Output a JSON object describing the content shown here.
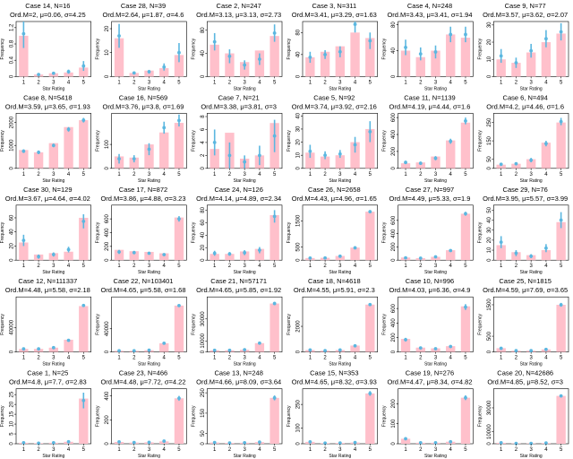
{
  "chart_data": {
    "type": "bar",
    "xlabel": "Star Rating",
    "ylabel": "Frequency",
    "categories": [
      "1",
      "2",
      "3",
      "4",
      "5"
    ],
    "colors": {
      "bar": "#ffc0cb",
      "point": "#5bb7e0",
      "axis": "#000000"
    },
    "panels": [
      {
        "title": "Case 14, N=16",
        "stats": "Ord.M=2, μ=0.06, σ=4.25",
        "values": [
          1.0,
          0.05,
          0.08,
          0.1,
          0.22
        ],
        "points": [
          1.05,
          0.05,
          0.08,
          0.12,
          0.26
        ],
        "err": [
          0.35,
          0.02,
          0.03,
          0.05,
          0.12
        ],
        "yticks": [
          0,
          0.4,
          0.8,
          1.2
        ],
        "ylim": [
          0,
          1.35
        ]
      },
      {
        "title": "Case 28, N=39",
        "stats": "Ord.M=2.64, μ=1.87, σ=4.6",
        "values": [
          16,
          1.5,
          2.5,
          3.5,
          9
        ],
        "points": [
          17,
          1.5,
          2,
          4,
          10
        ],
        "err": [
          5,
          0.5,
          0.8,
          1.5,
          4
        ],
        "yticks": [
          0,
          10,
          20
        ],
        "ylim": [
          0,
          23
        ]
      },
      {
        "title": "Case 2, N=247",
        "stats": "Ord.M=3.13, μ=3.13, σ=2.73",
        "values": [
          55,
          40,
          25,
          45,
          70
        ],
        "points": [
          60,
          35,
          20,
          30,
          75
        ],
        "err": [
          15,
          12,
          8,
          10,
          15
        ],
        "yticks": [
          0,
          40,
          80
        ],
        "ylim": [
          0,
          95
        ]
      },
      {
        "title": "Case 3, N=311",
        "stats": "Ord.M=3.41, μ=3.29, σ=1.63",
        "values": [
          35,
          45,
          55,
          80,
          70
        ],
        "points": [
          35,
          40,
          45,
          95,
          65
        ],
        "err": [
          10,
          8,
          10,
          15,
          15
        ],
        "yticks": [
          0,
          40,
          80
        ],
        "ylim": [
          0,
          100
        ]
      },
      {
        "title": "Case 4, N=248",
        "stats": "Ord.M=3.43, μ=3.41, σ=1.94",
        "values": [
          40,
          30,
          40,
          65,
          60
        ],
        "points": [
          45,
          35,
          38,
          65,
          65
        ],
        "err": [
          12,
          10,
          10,
          12,
          12
        ],
        "yticks": [
          0,
          40,
          80
        ],
        "ylim": [
          0,
          85
        ]
      },
      {
        "title": "Case 9, N=77",
        "stats": "Ord.M=3.57, μ=3.62, σ=2.07",
        "values": [
          10,
          8,
          14,
          20,
          25
        ],
        "points": [
          12,
          8,
          15,
          22,
          26
        ],
        "err": [
          4,
          3,
          4,
          5,
          5
        ],
        "yticks": [
          0,
          10,
          20,
          30
        ],
        "ylim": [
          0,
          32
        ]
      },
      {
        "title": "Case 8, N=5418",
        "stats": "Ord.M=3.59, μ=3.65, σ=1.93",
        "values": [
          800,
          700,
          1100,
          1800,
          2100
        ],
        "points": [
          750,
          700,
          1000,
          1700,
          2100
        ],
        "err": [
          80,
          80,
          80,
          100,
          100
        ],
        "yticks": [
          0,
          1000,
          2000
        ],
        "ylim": [
          0,
          2400
        ]
      },
      {
        "title": "Case 16, N=569",
        "stats": "Ord.M=3.76, μ=3.8, σ=1.69",
        "values": [
          50,
          45,
          100,
          150,
          190
        ],
        "points": [
          40,
          40,
          80,
          170,
          200
        ],
        "err": [
          20,
          15,
          25,
          25,
          25
        ],
        "yticks": [
          0,
          100
        ],
        "ylim": [
          0,
          230
        ]
      },
      {
        "title": "Case 7, N=21",
        "stats": "Ord.M=3.38, μ=3.81, σ=3",
        "values": [
          3,
          5.5,
          1.5,
          2,
          7
        ],
        "points": [
          4,
          2,
          1,
          2,
          5
        ],
        "err": [
          2,
          2,
          1,
          1.5,
          2.5
        ],
        "yticks": [
          0,
          2,
          4,
          6,
          8
        ],
        "ylim": [
          0,
          8.5
        ]
      },
      {
        "title": "Case 5, N=92",
        "stats": "Ord.M=3.74, μ=3.92, σ=2.16",
        "values": [
          12,
          9,
          10,
          20,
          30
        ],
        "points": [
          13,
          10,
          11,
          18,
          28
        ],
        "err": [
          5,
          3,
          3,
          6,
          8
        ],
        "yticks": [
          0,
          10,
          20,
          30,
          40
        ],
        "ylim": [
          0,
          42
        ]
      },
      {
        "title": "Case 11, N=1139",
        "stats": "Ord.M=4.19, μ=4.44, σ=1.6",
        "values": [
          60,
          70,
          140,
          330,
          540
        ],
        "points": [
          70,
          60,
          120,
          320,
          560
        ],
        "err": [
          20,
          20,
          25,
          30,
          40
        ],
        "yticks": [
          0,
          200,
          400,
          600
        ],
        "ylim": [
          0,
          650
        ]
      },
      {
        "title": "Case 6, N=494",
        "stats": "Ord.M=4.2, μ=4.46, σ=1.6",
        "values": [
          20,
          25,
          50,
          140,
          250
        ],
        "points": [
          22,
          25,
          45,
          135,
          255
        ],
        "err": [
          8,
          8,
          12,
          15,
          20
        ],
        "yticks": [
          0,
          50,
          150,
          250
        ],
        "ylim": [
          0,
          300
        ]
      },
      {
        "title": "Case 30, N=129",
        "stats": "Ord.M=3.67, μ=4.64, σ=4.02",
        "values": [
          25,
          8,
          10,
          12,
          60
        ],
        "points": [
          28,
          5,
          8,
          15,
          55
        ],
        "err": [
          8,
          3,
          3,
          4,
          10
        ],
        "yticks": [
          0,
          20,
          40,
          60
        ],
        "ylim": [
          0,
          78
        ]
      },
      {
        "title": "Case 17, N=872",
        "stats": "Ord.M=3.86, μ=4.88, σ=3.23",
        "values": [
          150,
          130,
          120,
          100,
          620
        ],
        "points": [
          120,
          110,
          100,
          80,
          600
        ],
        "err": [
          30,
          25,
          20,
          20,
          40
        ],
        "yticks": [
          0,
          200,
          400,
          600
        ],
        "ylim": [
          0,
          800
        ]
      },
      {
        "title": "Case 24, N=126",
        "stats": "Ord.M=4.14, μ=4.89, σ=2.34",
        "values": [
          10,
          10,
          14,
          18,
          72
        ],
        "points": [
          11,
          10,
          12,
          16,
          70
        ],
        "err": [
          4,
          3,
          4,
          5,
          10
        ],
        "yticks": [
          0,
          20,
          40,
          60,
          80
        ],
        "ylim": [
          0,
          88
        ]
      },
      {
        "title": "Case 26, N=2658",
        "stats": "Ord.M=4.43, μ=4.96, σ=1.65",
        "values": [
          80,
          90,
          160,
          480,
          1850
        ],
        "points": [
          80,
          85,
          150,
          470,
          1850
        ],
        "err": [
          20,
          20,
          30,
          40,
          60
        ],
        "yticks": [
          0,
          500,
          1500
        ],
        "ylim": [
          0,
          2100
        ]
      },
      {
        "title": "Case 27, N=997",
        "stats": "Ord.M=4.49, μ=5.33, σ=1.9",
        "values": [
          40,
          30,
          50,
          150,
          700
        ],
        "points": [
          35,
          30,
          50,
          145,
          700
        ],
        "err": [
          10,
          8,
          12,
          20,
          30
        ],
        "yticks": [
          0,
          200,
          400,
          600
        ],
        "ylim": [
          0,
          830
        ]
      },
      {
        "title": "Case 29, N=76",
        "stats": "Ord.M=3.95, μ=5.57, σ=3.99",
        "values": [
          15,
          8,
          5,
          10,
          38
        ],
        "points": [
          18,
          7,
          4,
          12,
          40
        ],
        "err": [
          6,
          3,
          2,
          4,
          8
        ],
        "yticks": [
          0,
          10,
          20,
          30,
          40,
          50
        ],
        "ylim": [
          0,
          55
        ]
      },
      {
        "title": "Case 12, N=111337",
        "stats": "Ord.M=4.48, μ=5.58, σ=2.18",
        "values": [
          5000,
          5000,
          7000,
          20000,
          75000
        ],
        "points": [
          5000,
          5000,
          7000,
          19000,
          76000
        ],
        "err": [
          1000,
          1000,
          1000,
          1500,
          2000
        ],
        "yticks": [
          0,
          40000
        ],
        "ylim": [
          0,
          90000
        ]
      },
      {
        "title": "Case 22, N=103401",
        "stats": "Ord.M=4.65, μ=5.58, σ=1.68",
        "values": [
          2000,
          2000,
          3000,
          15000,
          80000
        ],
        "points": [
          2000,
          2000,
          3000,
          15000,
          80000
        ],
        "err": [
          500,
          500,
          500,
          1000,
          2000
        ],
        "yticks": [
          0,
          40000
        ],
        "ylim": [
          0,
          95000
        ]
      },
      {
        "title": "Case 21, N=57171",
        "stats": "Ord.M=4.65, μ=5.85, σ=1.92",
        "values": [
          1500,
          1500,
          2000,
          8000,
          44000
        ],
        "points": [
          1500,
          1500,
          2000,
          8000,
          44000
        ],
        "err": [
          400,
          400,
          400,
          800,
          1500
        ],
        "yticks": [
          0,
          10000,
          30000
        ],
        "ylim": [
          0,
          50000
        ]
      },
      {
        "title": "Case 18, N=4618",
        "stats": "Ord.M=4.55, μ=5.91, σ=2.3",
        "values": [
          150,
          100,
          150,
          500,
          3700
        ],
        "points": [
          150,
          100,
          150,
          480,
          3700
        ],
        "err": [
          40,
          30,
          40,
          60,
          100
        ],
        "yticks": [
          0,
          2000
        ],
        "ylim": [
          0,
          4300
        ]
      },
      {
        "title": "Case 10, N=996",
        "stats": "Ord.M=4.03, μ=6.36, σ=4.9",
        "values": [
          180,
          60,
          50,
          80,
          630
        ],
        "points": [
          170,
          55,
          45,
          75,
          620
        ],
        "err": [
          25,
          15,
          12,
          15,
          40
        ],
        "yticks": [
          0,
          200,
          400,
          600
        ],
        "ylim": [
          0,
          760
        ]
      },
      {
        "title": "Case 25, N=1815",
        "stats": "Ord.M=4.59, μ=7.69, σ=3.65",
        "values": [
          120,
          40,
          40,
          80,
          1500
        ],
        "points": [
          115,
          40,
          40,
          80,
          1500
        ],
        "err": [
          25,
          12,
          12,
          18,
          60
        ],
        "yticks": [
          0,
          500,
          1500
        ],
        "ylim": [
          0,
          1750
        ]
      },
      {
        "title": "Case 1, N=25",
        "stats": "Ord.M=4.8, μ=7.7, σ=2.83",
        "values": [
          0.5,
          0.3,
          0.5,
          1,
          23
        ],
        "points": [
          0.5,
          0.3,
          0.5,
          1,
          22
        ],
        "err": [
          0.3,
          0.2,
          0.3,
          0.5,
          4
        ],
        "yticks": [
          0,
          5,
          10,
          15,
          20,
          25
        ],
        "ylim": [
          0,
          28
        ]
      },
      {
        "title": "Case 23, N=466",
        "stats": "Ord.M=4.48, μ=7.72, σ=4.22",
        "values": [
          15,
          10,
          12,
          20,
          380
        ],
        "points": [
          16,
          10,
          12,
          22,
          380
        ],
        "err": [
          5,
          3,
          4,
          6,
          20
        ],
        "yticks": [
          0,
          200,
          400
        ],
        "ylim": [
          0,
          460
        ]
      },
      {
        "title": "Case 13, N=248",
        "stats": "Ord.M=4.66, μ=8.09, σ=3.64",
        "values": [
          6,
          4,
          5,
          8,
          225
        ],
        "points": [
          6,
          4,
          5,
          8,
          225
        ],
        "err": [
          2,
          2,
          2,
          3,
          12
        ],
        "yticks": [
          0,
          50,
          150,
          250
        ],
        "ylim": [
          0,
          270
        ]
      },
      {
        "title": "Case 15, N=353",
        "stats": "Ord.M=4.65, μ=8.32, σ=3.93",
        "values": [
          12,
          4,
          5,
          8,
          320
        ],
        "points": [
          12,
          4,
          5,
          8,
          320
        ],
        "err": [
          4,
          2,
          2,
          3,
          15
        ],
        "yticks": [
          0,
          100,
          250
        ],
        "ylim": [
          0,
          350
        ]
      },
      {
        "title": "Case 19, N=276",
        "stats": "Ord.M=4.47, μ=8.34, σ=4.82",
        "values": [
          25,
          5,
          5,
          10,
          230
        ],
        "points": [
          25,
          5,
          5,
          10,
          230
        ],
        "err": [
          6,
          2,
          2,
          3,
          12
        ],
        "yticks": [
          0,
          100,
          200
        ],
        "ylim": [
          0,
          275
        ]
      },
      {
        "title": "Case 20, N=42686",
        "stats": "Ord.M=4.85, μ=8.52, σ=3",
        "values": [
          800,
          300,
          300,
          600,
          40000
        ],
        "points": [
          800,
          300,
          300,
          600,
          40000
        ],
        "err": [
          200,
          100,
          100,
          150,
          1200
        ],
        "yticks": [
          0,
          10000,
          30000
        ],
        "ylim": [
          0,
          46000
        ]
      }
    ]
  }
}
